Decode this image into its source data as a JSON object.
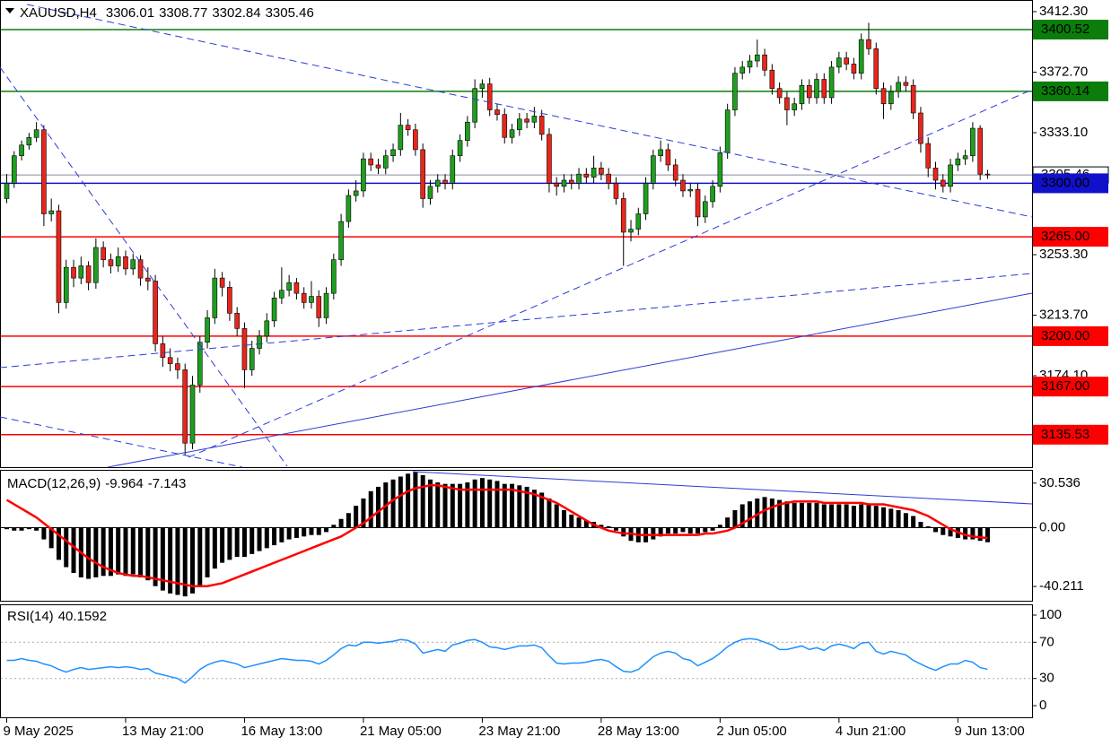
{
  "chart_data": {
    "type": "candlestick",
    "symbol": "XAUUSD,H4",
    "categories": [
      "9 May 2025",
      null,
      null,
      null,
      null,
      null,
      null,
      null,
      null,
      null,
      null,
      null,
      null,
      null,
      null,
      null,
      "13 May 21:00",
      null,
      null,
      null,
      null,
      null,
      null,
      null,
      null,
      null,
      null,
      null,
      null,
      null,
      null,
      null,
      "16 May 13:00",
      null,
      null,
      null,
      null,
      null,
      null,
      null,
      null,
      null,
      null,
      null,
      null,
      null,
      null,
      null,
      "21 May 05:00",
      null,
      null,
      null,
      null,
      null,
      null,
      null,
      null,
      null,
      null,
      null,
      null,
      null,
      null,
      null,
      "23 May 21:00",
      null,
      null,
      null,
      null,
      null,
      null,
      null,
      null,
      null,
      null,
      null,
      null,
      null,
      null,
      null,
      "28 May 13:00",
      null,
      null,
      null,
      null,
      null,
      null,
      null,
      null,
      null,
      null,
      null,
      null,
      null,
      null,
      null,
      "2 Jun 05:00",
      null,
      null,
      null,
      null,
      null,
      null,
      null,
      null,
      null,
      null,
      null,
      null,
      null,
      null,
      null,
      "4 Jun 21:00",
      null,
      null,
      null,
      null,
      null,
      null,
      null,
      null,
      null,
      null,
      null,
      null,
      null,
      null,
      null,
      "9 Jun 13:00",
      null,
      null,
      null,
      null
    ],
    "ohlc": [
      [
        3290,
        3306,
        3287,
        3300
      ],
      [
        3300,
        3321,
        3297,
        3318
      ],
      [
        3318,
        3328,
        3315,
        3325
      ],
      [
        3325,
        3333,
        3322,
        3330
      ],
      [
        3330,
        3340,
        3327,
        3335
      ],
      [
        3335,
        3338,
        3272,
        3280
      ],
      [
        3280,
        3290,
        3275,
        3282
      ],
      [
        3282,
        3286,
        3215,
        3222
      ],
      [
        3222,
        3250,
        3218,
        3245
      ],
      [
        3245,
        3250,
        3232,
        3238
      ],
      [
        3238,
        3252,
        3234,
        3246
      ],
      [
        3246,
        3249,
        3230,
        3235
      ],
      [
        3235,
        3264,
        3231,
        3258
      ],
      [
        3258,
        3262,
        3245,
        3250
      ],
      [
        3250,
        3254,
        3241,
        3246
      ],
      [
        3246,
        3258,
        3242,
        3252
      ],
      [
        3252,
        3256,
        3240,
        3244
      ],
      [
        3244,
        3254,
        3240,
        3250
      ],
      [
        3250,
        3253,
        3233,
        3238
      ],
      [
        3238,
        3245,
        3230,
        3236
      ],
      [
        3236,
        3240,
        3190,
        3195
      ],
      [
        3195,
        3200,
        3180,
        3186
      ],
      [
        3186,
        3192,
        3177,
        3182
      ],
      [
        3182,
        3186,
        3172,
        3178
      ],
      [
        3178,
        3182,
        3122,
        3130
      ],
      [
        3130,
        3174,
        3126,
        3168
      ],
      [
        3168,
        3200,
        3163,
        3196
      ],
      [
        3196,
        3217,
        3192,
        3212
      ],
      [
        3212,
        3244,
        3208,
        3238
      ],
      [
        3238,
        3242,
        3226,
        3232
      ],
      [
        3232,
        3236,
        3210,
        3215
      ],
      [
        3215,
        3219,
        3200,
        3205
      ],
      [
        3205,
        3209,
        3166,
        3178
      ],
      [
        3178,
        3197,
        3174,
        3192
      ],
      [
        3192,
        3204,
        3188,
        3200
      ],
      [
        3200,
        3215,
        3196,
        3210
      ],
      [
        3210,
        3229,
        3206,
        3225
      ],
      [
        3225,
        3245,
        3221,
        3230
      ],
      [
        3230,
        3240,
        3226,
        3235
      ],
      [
        3235,
        3238,
        3224,
        3228
      ],
      [
        3228,
        3232,
        3218,
        3222
      ],
      [
        3222,
        3236,
        3218,
        3226
      ],
      [
        3226,
        3230,
        3206,
        3212
      ],
      [
        3212,
        3232,
        3208,
        3228
      ],
      [
        3228,
        3254,
        3224,
        3250
      ],
      [
        3250,
        3280,
        3246,
        3275
      ],
      [
        3275,
        3296,
        3271,
        3292
      ],
      [
        3292,
        3302,
        3288,
        3295
      ],
      [
        3295,
        3320,
        3291,
        3316
      ],
      [
        3316,
        3320,
        3308,
        3312
      ],
      [
        3312,
        3316,
        3306,
        3310
      ],
      [
        3310,
        3322,
        3306,
        3318
      ],
      [
        3318,
        3326,
        3314,
        3322
      ],
      [
        3322,
        3346,
        3318,
        3338
      ],
      [
        3338,
        3342,
        3331,
        3335
      ],
      [
        3335,
        3339,
        3318,
        3322
      ],
      [
        3322,
        3326,
        3284,
        3290
      ],
      [
        3290,
        3302,
        3286,
        3298
      ],
      [
        3298,
        3306,
        3294,
        3302
      ],
      [
        3302,
        3306,
        3296,
        3300
      ],
      [
        3300,
        3322,
        3296,
        3318
      ],
      [
        3318,
        3332,
        3314,
        3328
      ],
      [
        3328,
        3344,
        3324,
        3340
      ],
      [
        3340,
        3368,
        3336,
        3362
      ],
      [
        3362,
        3368,
        3356,
        3365
      ],
      [
        3365,
        3369,
        3344,
        3348
      ],
      [
        3348,
        3352,
        3341,
        3345
      ],
      [
        3345,
        3349,
        3326,
        3330
      ],
      [
        3330,
        3339,
        3326,
        3335
      ],
      [
        3335,
        3346,
        3331,
        3342
      ],
      [
        3342,
        3346,
        3336,
        3340
      ],
      [
        3340,
        3350,
        3336,
        3344
      ],
      [
        3344,
        3348,
        3328,
        3332
      ],
      [
        3332,
        3336,
        3294,
        3300
      ],
      [
        3300,
        3304,
        3292,
        3298
      ],
      [
        3298,
        3306,
        3294,
        3302
      ],
      [
        3302,
        3306,
        3296,
        3300
      ],
      [
        3300,
        3310,
        3296,
        3306
      ],
      [
        3306,
        3310,
        3300,
        3304
      ],
      [
        3304,
        3318,
        3300,
        3310
      ],
      [
        3310,
        3314,
        3302,
        3306
      ],
      [
        3306,
        3310,
        3296,
        3300
      ],
      [
        3300,
        3304,
        3286,
        3290
      ],
      [
        3290,
        3294,
        3246,
        3268
      ],
      [
        3268,
        3276,
        3262,
        3270
      ],
      [
        3270,
        3284,
        3266,
        3280
      ],
      [
        3280,
        3304,
        3276,
        3300
      ],
      [
        3300,
        3322,
        3296,
        3318
      ],
      [
        3318,
        3328,
        3314,
        3322
      ],
      [
        3322,
        3326,
        3308,
        3312
      ],
      [
        3312,
        3316,
        3298,
        3302
      ],
      [
        3302,
        3306,
        3291,
        3295
      ],
      [
        3295,
        3300,
        3291,
        3296
      ],
      [
        3296,
        3300,
        3272,
        3278
      ],
      [
        3278,
        3292,
        3274,
        3288
      ],
      [
        3288,
        3302,
        3284,
        3298
      ],
      [
        3298,
        3324,
        3294,
        3320
      ],
      [
        3320,
        3352,
        3316,
        3348
      ],
      [
        3348,
        3376,
        3344,
        3372
      ],
      [
        3372,
        3380,
        3368,
        3376
      ],
      [
        3376,
        3384,
        3372,
        3380
      ],
      [
        3380,
        3394,
        3376,
        3384
      ],
      [
        3384,
        3388,
        3370,
        3374
      ],
      [
        3374,
        3378,
        3358,
        3362
      ],
      [
        3362,
        3366,
        3352,
        3356
      ],
      [
        3356,
        3360,
        3338,
        3348
      ],
      [
        3348,
        3356,
        3344,
        3352
      ],
      [
        3352,
        3368,
        3348,
        3364
      ],
      [
        3364,
        3368,
        3352,
        3356
      ],
      [
        3356,
        3372,
        3352,
        3368
      ],
      [
        3368,
        3372,
        3352,
        3356
      ],
      [
        3356,
        3380,
        3352,
        3376
      ],
      [
        3376,
        3386,
        3372,
        3382
      ],
      [
        3382,
        3386,
        3374,
        3378
      ],
      [
        3378,
        3382,
        3368,
        3372
      ],
      [
        3372,
        3398,
        3368,
        3394
      ],
      [
        3394,
        3405,
        3384,
        3388
      ],
      [
        3388,
        3392,
        3358,
        3362
      ],
      [
        3362,
        3366,
        3342,
        3352
      ],
      [
        3352,
        3364,
        3348,
        3360
      ],
      [
        3360,
        3370,
        3356,
        3366
      ],
      [
        3366,
        3370,
        3360,
        3364
      ],
      [
        3364,
        3368,
        3342,
        3346
      ],
      [
        3346,
        3350,
        3320,
        3326
      ],
      [
        3326,
        3330,
        3304,
        3310
      ],
      [
        3310,
        3314,
        3296,
        3302
      ],
      [
        3302,
        3306,
        3294,
        3298
      ],
      [
        3298,
        3316,
        3294,
        3312
      ],
      [
        3312,
        3320,
        3308,
        3316
      ],
      [
        3316,
        3322,
        3312,
        3318
      ],
      [
        3318,
        3340,
        3314,
        3336
      ],
      [
        3336,
        3338,
        3302,
        3306
      ],
      [
        3306.01,
        3308.77,
        3302.84,
        3305.46
      ]
    ],
    "bull_color": "#1f9e1f",
    "bear_color": "#e8261c",
    "wick_color": "#000000",
    "ylim": [
      3114.3,
      3419.9
    ],
    "yticks": [
      {
        "value": 3412.3,
        "label": "3412.30"
      },
      {
        "value": 3372.7,
        "label": "3372.70"
      },
      {
        "value": 3333.1,
        "label": "3333.10"
      },
      {
        "value": 3253.3,
        "label": "3253.30"
      },
      {
        "value": 3213.7,
        "label": "3213.70"
      },
      {
        "value": 3174.1,
        "label": "3174.10"
      }
    ],
    "levels": [
      {
        "value": 3400.52,
        "color": "#0b7d0b"
      },
      {
        "value": 3360.14,
        "color": "#0b7d0b"
      },
      {
        "value": 3300,
        "label": "3300.00",
        "color": "#1111cc"
      },
      {
        "value": 3265,
        "label": "3265.00",
        "color": "#ff0000"
      },
      {
        "value": 3200,
        "label": "3200.00",
        "color": "#ff0000"
      },
      {
        "value": 3167,
        "label": "3167.00",
        "color": "#ff0000"
      },
      {
        "value": 3135.53,
        "color": "#ff0000"
      }
    ],
    "macd": {
      "title": "MACD(12,26,9)",
      "histogram": [
        -1,
        -2,
        -2,
        -1,
        -2,
        -8,
        -14,
        -22,
        -27,
        -31,
        -34,
        -35,
        -34,
        -33,
        -33,
        -32,
        -33,
        -32,
        -34,
        -36,
        -40,
        -43,
        -45,
        -46,
        -47,
        -45,
        -40,
        -34,
        -28,
        -24,
        -22,
        -20,
        -20,
        -18,
        -16,
        -14,
        -12,
        -10,
        -8,
        -7,
        -6,
        -5,
        -5,
        -3,
        2,
        6,
        10,
        15,
        20,
        25,
        28,
        31,
        33,
        35,
        37,
        38,
        36,
        33,
        31,
        30,
        30,
        30,
        31,
        33,
        34,
        33,
        32,
        30,
        30,
        29,
        28,
        26,
        24,
        20,
        16,
        12,
        9,
        7,
        5,
        4,
        2,
        1,
        -2,
        -6,
        -9,
        -10,
        -10,
        -8,
        -6,
        -4,
        -4,
        -3,
        -4,
        -4,
        -3,
        -2,
        2,
        7,
        12,
        16,
        18,
        20,
        21,
        20,
        19,
        18,
        17,
        17,
        17,
        17,
        16,
        16,
        16,
        16,
        15,
        16,
        16,
        15,
        14,
        13,
        12,
        10,
        8,
        4,
        1,
        -3,
        -5,
        -6,
        -7,
        -8,
        -8,
        -9,
        -9.964
      ],
      "signal": [
        19,
        16,
        13,
        10,
        7,
        3,
        -1,
        -5,
        -9,
        -13,
        -17,
        -21,
        -24,
        -27,
        -29,
        -31,
        -32,
        -33,
        -33,
        -34,
        -35,
        -36,
        -37,
        -38,
        -39,
        -40,
        -40,
        -40,
        -39,
        -38,
        -36,
        -34,
        -32,
        -30,
        -28,
        -26,
        -24,
        -22,
        -20,
        -18,
        -16,
        -14,
        -12,
        -10,
        -8,
        -6,
        -3,
        0,
        3,
        7,
        11,
        15,
        19,
        22,
        25,
        27,
        28,
        29,
        29,
        28,
        27,
        26,
        26,
        26,
        26,
        26,
        26,
        26,
        26,
        25,
        24,
        23,
        21,
        19,
        17,
        14,
        11,
        8,
        5,
        2,
        0,
        -2,
        -3,
        -4,
        -4,
        -5,
        -5,
        -5,
        -5,
        -5,
        -5,
        -5,
        -5,
        -5,
        -4,
        -4,
        -3,
        -2,
        0,
        3,
        6,
        9,
        12,
        14,
        16,
        17,
        18,
        18,
        18,
        18,
        17,
        17,
        17,
        17,
        17,
        17,
        16,
        16,
        16,
        15,
        14,
        13,
        12,
        10,
        8,
        5,
        2,
        -1,
        -3,
        -5,
        -6,
        -6.6,
        -7.143
      ],
      "hist_color": "#000000",
      "signal_color": "#ff0000",
      "ylim": [
        -50,
        39
      ],
      "yticks": [
        30.536,
        {
          "value": 0,
          "label": "0.00"
        },
        -40.211
      ]
    },
    "rsi": {
      "title": "RSI(14)",
      "values": [
        50,
        50,
        52,
        50,
        49,
        46,
        44,
        40,
        37,
        40,
        42,
        40,
        41,
        42,
        43,
        42,
        43,
        42,
        40,
        41,
        36,
        34,
        32,
        30,
        25,
        32,
        40,
        45,
        48,
        50,
        48,
        46,
        42,
        44,
        46,
        48,
        50,
        52,
        51,
        50,
        50,
        49,
        46,
        50,
        56,
        63,
        67,
        66,
        70,
        70,
        69,
        70,
        71,
        73,
        72,
        68,
        58,
        60,
        62,
        60,
        67,
        69,
        72,
        73,
        70,
        65,
        64,
        62,
        64,
        66,
        66,
        67,
        64,
        55,
        47,
        46,
        47,
        47,
        48,
        50,
        51,
        49,
        43,
        38,
        37,
        40,
        47,
        54,
        58,
        60,
        58,
        52,
        50,
        44,
        48,
        52,
        58,
        65,
        70,
        73,
        74,
        73,
        70,
        67,
        62,
        62,
        64,
        66,
        62,
        64,
        61,
        66,
        68,
        66,
        63,
        69,
        70,
        60,
        57,
        60,
        58,
        56,
        50,
        46,
        42,
        39,
        43,
        46,
        46,
        50,
        48,
        42,
        40.1592
      ],
      "color": "#1e90ff",
      "ylim": [
        0,
        100
      ],
      "yticks": [
        100,
        70,
        30,
        0
      ],
      "grid": true
    }
  }
}
